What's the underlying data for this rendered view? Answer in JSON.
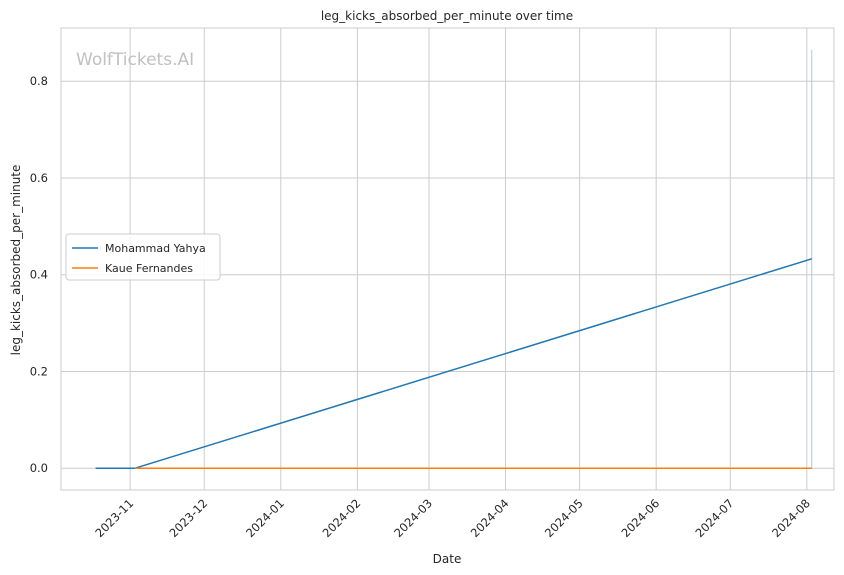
{
  "watermark": "WolfTickets.AI",
  "chart_data": {
    "type": "line",
    "title": "leg_kicks_absorbed_per_minute over time",
    "xlabel": "Date",
    "ylabel": "leg_kicks_absorbed_per_minute",
    "x_ticks": [
      "2023-11",
      "2023-12",
      "2024-01",
      "2024-02",
      "2024-03",
      "2024-04",
      "2024-05",
      "2024-06",
      "2024-07",
      "2024-08"
    ],
    "y_ticks": [
      "0.0",
      "0.2",
      "0.4",
      "0.6",
      "0.8"
    ],
    "ylim": [
      -0.045,
      0.91
    ],
    "xlim": [
      "2023-10-04",
      "2024-08-12"
    ],
    "grid": true,
    "legend_position": "center-left",
    "series": [
      {
        "name": "Mohammad Yahya",
        "color": "#1f77b4",
        "points": [
          {
            "x": "2023-10-18",
            "y": 0.0
          },
          {
            "x": "2023-11-03",
            "y": 0.0
          },
          {
            "x": "2024-08-03",
            "y": 0.433
          }
        ]
      },
      {
        "name": "Kaue Fernandes",
        "color": "#ff7f0e",
        "points": [
          {
            "x": "2023-11-03",
            "y": 0.0
          },
          {
            "x": "2024-08-03",
            "y": 0.0
          }
        ]
      }
    ],
    "vertical_marker": {
      "x": "2024-08-03",
      "y_from": 0.0,
      "y_to": 0.865,
      "color": "#aec7e8"
    }
  }
}
